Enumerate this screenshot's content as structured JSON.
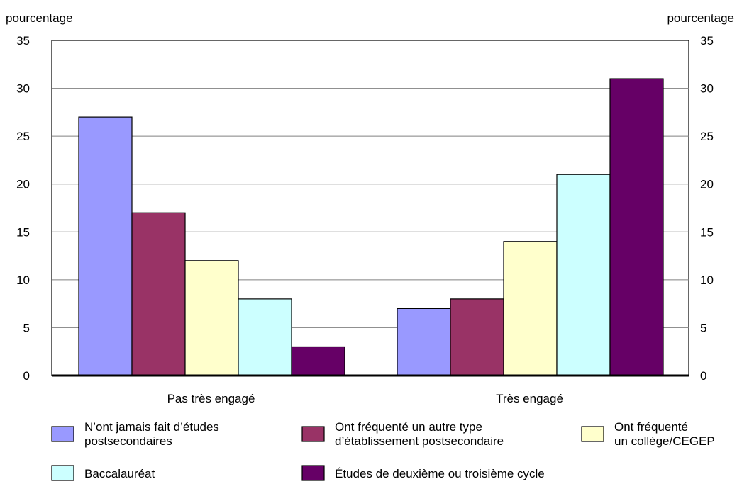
{
  "chart_data": {
    "type": "bar",
    "ylabel_left": "pourcentage",
    "ylabel_right": "pourcentage",
    "ylim": [
      0,
      35
    ],
    "yticks": [
      0,
      5,
      10,
      15,
      20,
      25,
      30,
      35
    ],
    "grid": true,
    "legend_position": "bottom",
    "categories": [
      "Pas très engagé",
      "Très engagé"
    ],
    "series": [
      {
        "name": "N'ont jamais fait d'études postsecondaires",
        "legend_lines": [
          "N’ont jamais fait d’études",
          "postsecondaires"
        ],
        "color": "#9999ff",
        "values": [
          27,
          7
        ]
      },
      {
        "name": "Ont fréquenté un autre type d'établissement postsecondaire",
        "legend_lines": [
          "Ont fréquenté un autre type",
          "d’établissement postsecondaire"
        ],
        "color": "#993366",
        "values": [
          17,
          8
        ]
      },
      {
        "name": "Ont fréquenté un collège/CEGEP",
        "legend_lines": [
          "Ont fréquenté",
          "un collège/CEGEP"
        ],
        "color": "#ffffcc",
        "values": [
          12,
          14
        ]
      },
      {
        "name": "Baccalauréat",
        "legend_lines": [
          "Baccalauréat"
        ],
        "color": "#ccffff",
        "values": [
          8,
          21
        ]
      },
      {
        "name": "Études de deuxième ou troisième cycle",
        "legend_lines": [
          "Études de deuxième ou troisième cycle"
        ],
        "color": "#660066",
        "values": [
          3,
          31
        ]
      }
    ]
  }
}
